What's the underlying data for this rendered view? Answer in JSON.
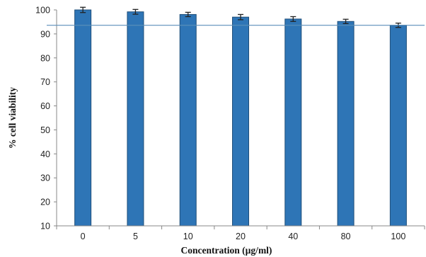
{
  "chart_data": {
    "type": "bar",
    "title": "",
    "xlabel": "Concentration (µg/ml)",
    "ylabel": "% cell viability",
    "categories": [
      "0",
      "5",
      "10",
      "20",
      "40",
      "80",
      "100"
    ],
    "values": [
      100,
      99.2,
      98.1,
      97.0,
      96.2,
      95.2,
      93.6
    ],
    "errors": [
      1.1,
      1.0,
      0.9,
      1.1,
      1.0,
      0.9,
      0.9
    ],
    "ylim": [
      10,
      100
    ],
    "yticks": [
      10,
      20,
      30,
      40,
      50,
      60,
      70,
      80,
      90,
      100
    ],
    "reference_line": 93.6,
    "grid": false,
    "legend": "none",
    "colors": {
      "bar_fill": "#2e75b6",
      "bar_stroke": "#1f4e79",
      "axis": "#888888",
      "reference_line": "#5b8fb9",
      "error_bar": "#222222"
    }
  }
}
